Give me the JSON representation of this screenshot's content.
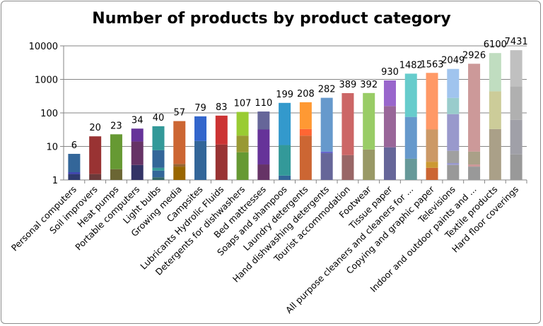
{
  "chart_data": {
    "type": "bar",
    "title": "Number of products by product category",
    "xlabel": "",
    "ylabel": "",
    "yscale": "log",
    "ylim": [
      1,
      10000
    ],
    "yticks": [
      "1",
      "10",
      "100",
      "1000",
      "10000"
    ],
    "grid": true,
    "stacked_segments": true,
    "categories": [
      "Personal computers",
      "Soil improvers",
      "Heat pumps",
      "Portable computers",
      "Light bulbs",
      "Growing media",
      "Campsites",
      "Lubricants Hydrolic Fluids",
      "Detergents for dishwashers",
      "Bed mattresses",
      "Soaps and shampoos",
      "Laundry detergents",
      "Hand dishwashing detergents",
      "Tourist accommodation",
      "Footwear",
      "Tissue paper",
      "All purpose cleaners and cleaners for ...",
      "Copying and graphic paper",
      "Televisions",
      "Indoor and outdoor paints and ...",
      "Textile products",
      "Hard floor coverings"
    ],
    "values": [
      6,
      20,
      23,
      34,
      40,
      57,
      79,
      83,
      107,
      110,
      199,
      208,
      282,
      389,
      392,
      930,
      1482,
      1563,
      2049,
      2926,
      6100,
      7431
    ],
    "data_labels": [
      "6",
      "20",
      "23",
      "34",
      "40",
      "57",
      "79",
      "83",
      "107",
      "110",
      "199",
      "208",
      "282",
      "389",
      "392",
      "930",
      "1482",
      "1563",
      "2049",
      "2926",
      "6100",
      "7431"
    ],
    "segments": [
      [
        [
          1.5,
          "#2e3a6e"
        ],
        [
          1.7,
          "#3a3fb0"
        ],
        [
          6,
          "#336699"
        ]
      ],
      [
        [
          1.5,
          "#6b3a3a"
        ],
        [
          20,
          "#993333"
        ]
      ],
      [
        [
          2.1,
          "#6b6633"
        ],
        [
          23,
          "#669933"
        ]
      ],
      [
        [
          2.8,
          "#333366"
        ],
        [
          14,
          "#663366"
        ],
        [
          34,
          "#663399"
        ]
      ],
      [
        [
          1.2,
          "#336666"
        ],
        [
          1.9,
          "#336699"
        ],
        [
          2.3,
          "#339999"
        ],
        [
          7.7,
          "#336699"
        ],
        [
          40,
          "#339999"
        ]
      ],
      [
        [
          2.5,
          "#996600"
        ],
        [
          3,
          "#996633"
        ],
        [
          57,
          "#cc6633"
        ]
      ],
      [
        [
          14.5,
          "#336699"
        ],
        [
          79,
          "#3366cc"
        ]
      ],
      [
        [
          11.4,
          "#993333"
        ],
        [
          83,
          "#cc3333"
        ]
      ],
      [
        [
          6.7,
          "#669933"
        ],
        [
          21,
          "#999933"
        ],
        [
          107,
          "#99cc33"
        ]
      ],
      [
        [
          2.9,
          "#663366"
        ],
        [
          32,
          "#663399"
        ],
        [
          110,
          "#666699"
        ]
      ],
      [
        [
          1.35,
          "#336699"
        ],
        [
          11,
          "#339999"
        ],
        [
          199,
          "#3399cc"
        ]
      ],
      [
        [
          21,
          "#cc6633"
        ],
        [
          33,
          "#ff6633"
        ],
        [
          208,
          "#ff9933"
        ]
      ],
      [
        [
          6.3,
          "#666699"
        ],
        [
          7,
          "#6666cc"
        ],
        [
          282,
          "#6699cc"
        ]
      ],
      [
        [
          5.5,
          "#996666"
        ],
        [
          389,
          "#cc6666"
        ]
      ],
      [
        [
          8.1,
          "#999966"
        ],
        [
          392,
          "#99cc66"
        ]
      ],
      [
        [
          9.4,
          "#666699"
        ],
        [
          160,
          "#996699"
        ],
        [
          930,
          "#9966cc"
        ]
      ],
      [
        [
          4.3,
          "#669999"
        ],
        [
          76,
          "#6699cc"
        ],
        [
          1482,
          "#66cccc"
        ]
      ],
      [
        [
          2.3,
          "#cc6633"
        ],
        [
          3.5,
          "#cc9933"
        ],
        [
          32,
          "#cc9966"
        ],
        [
          1563,
          "#ff9966"
        ]
      ],
      [
        [
          2.8,
          "#999999"
        ],
        [
          3.2,
          "#9999cc"
        ],
        [
          7.4,
          "#a0a0a0"
        ],
        [
          92,
          "#9999cc"
        ],
        [
          280,
          "#99cccc"
        ],
        [
          2049,
          "#a0c4ee"
        ]
      ],
      [
        [
          2.5,
          "#999999"
        ],
        [
          2.9,
          "#cc9999"
        ],
        [
          7,
          "#aaa088"
        ],
        [
          2926,
          "#cc9999"
        ]
      ],
      [
        [
          33,
          "#aaa088"
        ],
        [
          440,
          "#cccc99"
        ],
        [
          6100,
          "#c0ddc0"
        ]
      ],
      [
        [
          5.8,
          "#999999"
        ],
        [
          62,
          "#a0a0a8"
        ],
        [
          620,
          "#b0b0b0"
        ],
        [
          7431,
          "#c0c0c0"
        ]
      ]
    ],
    "legend": "none"
  }
}
